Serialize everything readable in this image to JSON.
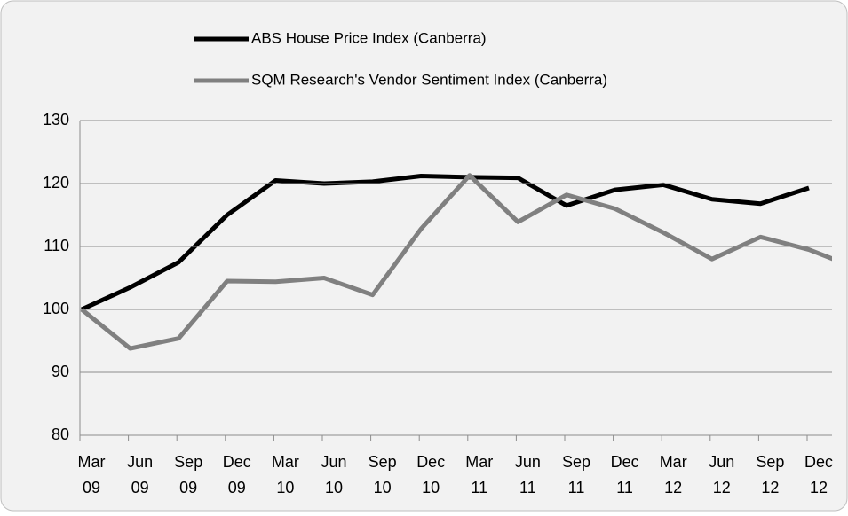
{
  "chart_data": {
    "type": "line",
    "categories": [
      [
        "Mar",
        "09"
      ],
      [
        "Jun",
        "09"
      ],
      [
        "Sep",
        "09"
      ],
      [
        "Dec",
        "09"
      ],
      [
        "Mar",
        "10"
      ],
      [
        "Jun",
        "10"
      ],
      [
        "Sep",
        "10"
      ],
      [
        "Dec",
        "10"
      ],
      [
        "Mar",
        "11"
      ],
      [
        "Jun",
        "11"
      ],
      [
        "Sep",
        "11"
      ],
      [
        "Dec",
        "11"
      ],
      [
        "Mar",
        "12"
      ],
      [
        "Jun",
        "12"
      ],
      [
        "Sep",
        "12"
      ],
      [
        "Dec",
        "12"
      ],
      null
    ],
    "series": [
      {
        "name": "ABS House Price Index (Canberra)",
        "color": "#000000",
        "values": [
          100,
          103.5,
          107.5,
          115,
          120.5,
          120,
          120.3,
          121.2,
          121,
          120.9,
          116.5,
          119,
          119.8,
          117.5,
          116.8,
          119.3,
          null
        ]
      },
      {
        "name": "SQM Research's Vendor Sentiment Index (Canberra)",
        "color": "#808080",
        "values": [
          100,
          93.8,
          95.4,
          104.5,
          104.4,
          105,
          102.3,
          112.8,
          121.3,
          113.9,
          118.2,
          116,
          112.2,
          108,
          111.5,
          109.5,
          106.5
        ]
      }
    ],
    "ylim": [
      80,
      130
    ],
    "yticks": [
      80,
      90,
      100,
      110,
      120,
      130
    ],
    "grid": true
  }
}
